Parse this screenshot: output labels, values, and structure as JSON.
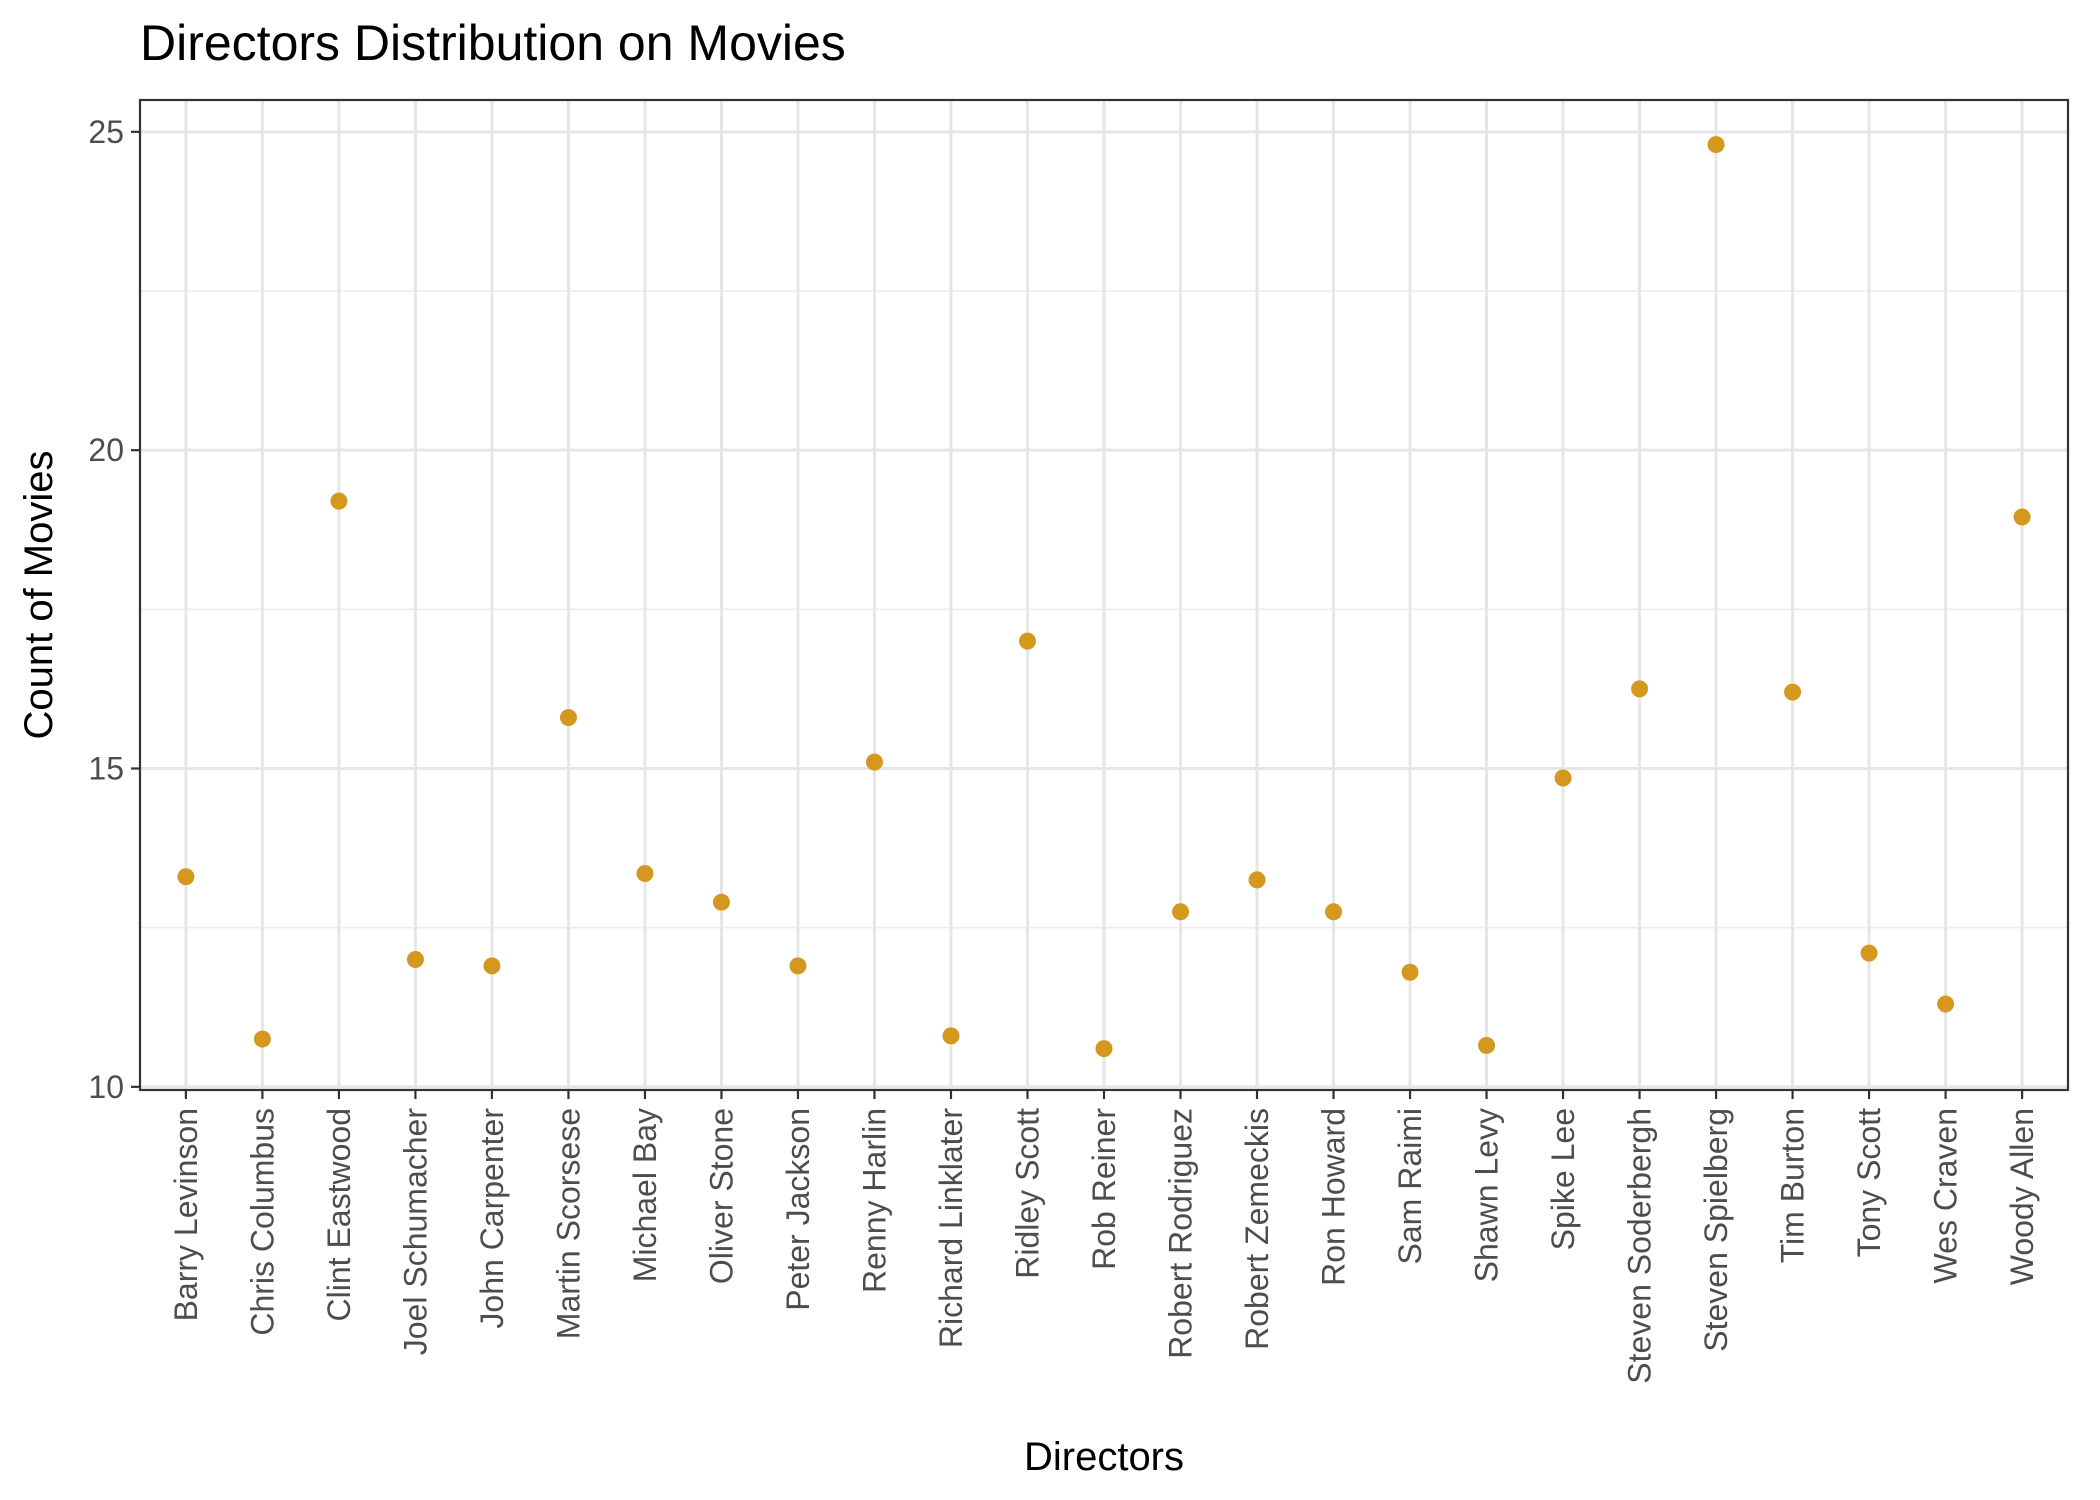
{
  "chart_data": {
    "type": "scatter",
    "title": "Directors Distribution on Movies",
    "xlabel": "Directors",
    "ylabel": "Count of Movies",
    "ylim": [
      9.95,
      25.5
    ],
    "yticks": [
      10,
      15,
      20,
      25
    ],
    "yticks_minor": [
      12.5,
      17.5,
      22.5
    ],
    "grid": true,
    "legend": "none",
    "point_color": "#D4981E",
    "categories": [
      "Barry Levinson",
      "Chris Columbus",
      "Clint Eastwood",
      "Joel Schumacher",
      "John Carpenter",
      "Martin Scorsese",
      "Michael Bay",
      "Oliver Stone",
      "Peter Jackson",
      "Renny Harlin",
      "Richard Linklater",
      "Ridley Scott",
      "Rob Reiner",
      "Robert Rodriguez",
      "Robert Zemeckis",
      "Ron Howard",
      "Sam Raimi",
      "Shawn Levy",
      "Spike Lee",
      "Steven Soderbergh",
      "Steven Spielberg",
      "Tim Burton",
      "Tony Scott",
      "Wes Craven",
      "Woody Allen"
    ],
    "points": [
      {
        "x": "Barry Levinson",
        "y": 13.3
      },
      {
        "x": "Chris Columbus",
        "y": 10.75
      },
      {
        "x": "Clint Eastwood",
        "y": 19.2
      },
      {
        "x": "Joel Schumacher",
        "y": 12.0
      },
      {
        "x": "John Carpenter",
        "y": 11.9
      },
      {
        "x": "Martin Scorsese",
        "y": 15.8
      },
      {
        "x": "Michael Bay",
        "y": 13.35
      },
      {
        "x": "Oliver Stone",
        "y": 12.9
      },
      {
        "x": "Peter Jackson",
        "y": 11.9
      },
      {
        "x": "Renny Harlin",
        "y": 15.1
      },
      {
        "x": "Richard Linklater",
        "y": 10.8
      },
      {
        "x": "Ridley Scott",
        "y": 17.0
      },
      {
        "x": "Rob Reiner",
        "y": 10.6
      },
      {
        "x": "Robert Rodriguez",
        "y": 12.75
      },
      {
        "x": "Robert Zemeckis",
        "y": 13.25
      },
      {
        "x": "Ron Howard",
        "y": 12.75
      },
      {
        "x": "Sam Raimi",
        "y": 11.8
      },
      {
        "x": "Shawn Levy",
        "y": 10.65
      },
      {
        "x": "Spike Lee",
        "y": 14.85
      },
      {
        "x": "Steven Soderbergh",
        "y": 16.25
      },
      {
        "x": "Steven Spielberg",
        "y": 24.8
      },
      {
        "x": "Tim Burton",
        "y": 16.2
      },
      {
        "x": "Tony Scott",
        "y": 12.1
      },
      {
        "x": "Wes Craven",
        "y": 11.3
      },
      {
        "x": "Woody Allen",
        "y": 18.95
      }
    ]
  }
}
